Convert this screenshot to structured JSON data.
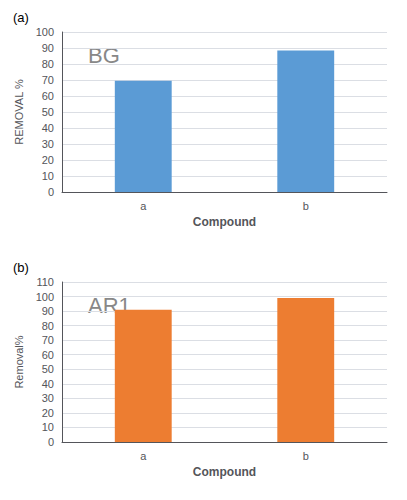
{
  "chart_data": [
    {
      "type": "bar",
      "title": "(a)",
      "annotation": "BG",
      "categories": [
        "a",
        "b"
      ],
      "values": [
        69.5,
        88.5
      ],
      "color": "#5B9BD5",
      "xlabel": "Compound",
      "ylabel": "REMOVAL %",
      "ylim": [
        0,
        100
      ],
      "yticks": [
        0,
        10,
        20,
        30,
        40,
        50,
        60,
        70,
        80,
        90,
        100
      ],
      "grid": true
    },
    {
      "type": "bar",
      "title": "(b)",
      "annotation": "AR1",
      "categories": [
        "a",
        "b"
      ],
      "values": [
        91.0,
        99.0
      ],
      "color": "#ED7D31",
      "xlabel": "Compound",
      "ylabel": "Removal%",
      "ylim": [
        0,
        110
      ],
      "yticks": [
        0,
        10,
        20,
        30,
        40,
        50,
        60,
        70,
        80,
        90,
        100,
        110
      ],
      "grid": true
    }
  ]
}
